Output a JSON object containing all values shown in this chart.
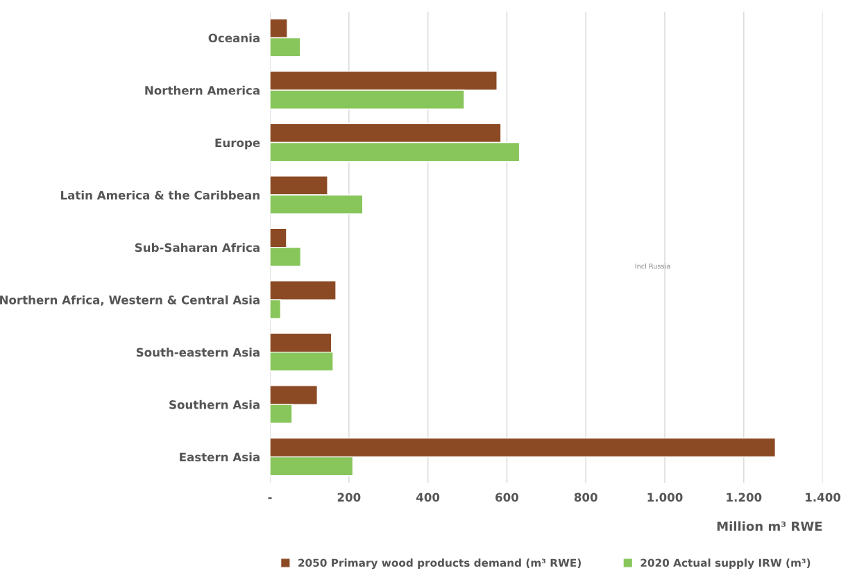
{
  "chart_data": {
    "type": "bar",
    "orientation": "horizontal",
    "categories": [
      "Oceania",
      "Northern America",
      "Europe",
      "Latin America & the Caribbean",
      "Sub-Saharan Africa",
      "Northern Africa, Western & Central Asia",
      "South-eastern Asia",
      "Southern Asia",
      "Eastern Asia"
    ],
    "series": [
      {
        "name": "2050 Primary wood products demand (m³ RWE)",
        "color": "#8b4a24",
        "values": [
          44,
          575,
          585,
          146,
          42,
          167,
          156,
          120,
          1280
        ]
      },
      {
        "name": "2020 Actual supply IRW (m³)",
        "color": "#88c65c",
        "values": [
          77,
          492,
          632,
          235,
          78,
          27,
          160,
          56,
          210
        ]
      }
    ],
    "xlabel": "Million m³ RWE",
    "xlim": [
      0,
      1400
    ],
    "xticks": [
      {
        "value": 0,
        "label": "-"
      },
      200,
      400,
      600,
      800,
      {
        "value": 1000,
        "label": "1.000"
      },
      {
        "value": 1200,
        "label": "1.200"
      },
      {
        "value": 1400,
        "label": "1.400"
      }
    ],
    "annotations": [
      "Incl Russia"
    ],
    "grid": "x",
    "legend": "bottom"
  }
}
